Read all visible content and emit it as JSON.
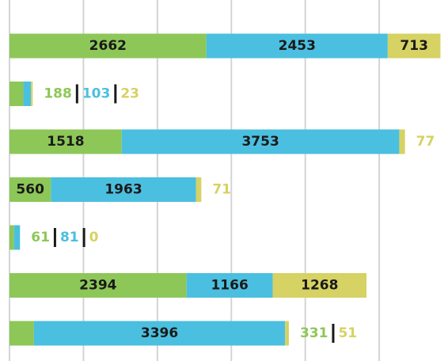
{
  "chart_data": {
    "type": "stacked-barh",
    "series": [
      {
        "name": null,
        "color": "#8dc758",
        "values": [
          2662,
          188,
          1518,
          560,
          61,
          2394,
          331
        ]
      },
      {
        "name": null,
        "color": "#4bbfdf",
        "values": [
          2453,
          103,
          3753,
          1963,
          81,
          1166,
          3396
        ]
      },
      {
        "name": null,
        "color": "#d6d263",
        "values": [
          713,
          23,
          77,
          71,
          0,
          1268,
          51
        ]
      }
    ],
    "xlim": [
      0,
      5930
    ],
    "xticks": [
      0,
      1000,
      2000,
      3000,
      4000,
      5000
    ],
    "grid": true
  }
}
